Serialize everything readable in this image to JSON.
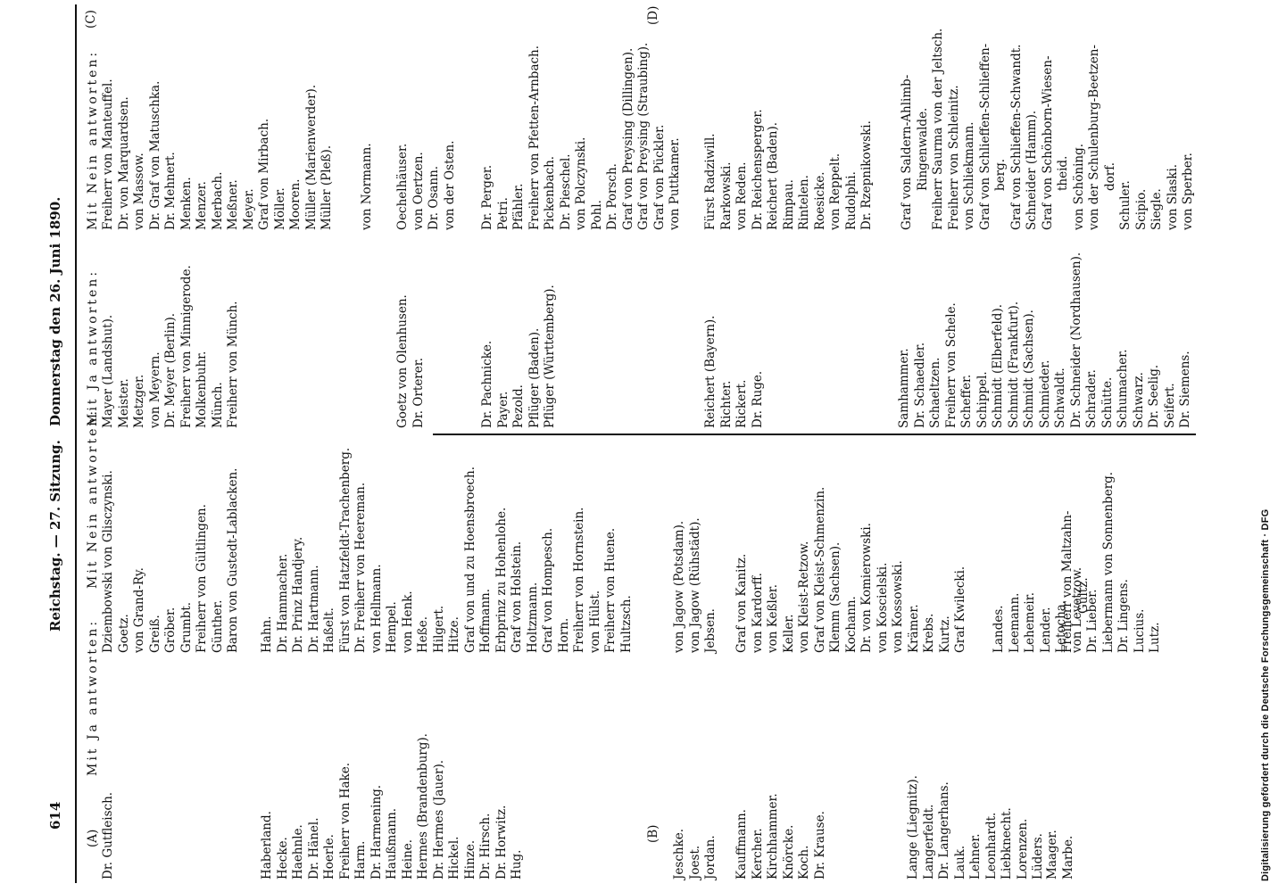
{
  "header": {
    "page_number": "614",
    "session": "Reichstag. — 27. Sitzung.",
    "date": "Donnerstag den 26. Juni 1890."
  },
  "margin_marks": [
    "(A)",
    "(B)",
    "(C)",
    "(D)"
  ],
  "columns": [
    {
      "heading": "Mit Ja antworten:",
      "blocks": [
        [
          "Dr. Gutfleisch."
        ],
        [
          "Haberland.",
          "Hecke.",
          "Haehnle.",
          "Dr. Hänel.",
          "Hoerle.",
          "Freiherr von Hake.",
          "Harm.",
          "Dr. Harmening.",
          "Haußmann.",
          "Heine.",
          "Hermes (Brandenburg).",
          "Dr. Hermes (Jauer).",
          "Hickel.",
          "Hinze.",
          "Dr. Hirsch.",
          "Dr. Horwitz.",
          "Hug."
        ],
        [
          "Jeschke.",
          "Joest.",
          "Jordan."
        ],
        [
          "Kauffmann.",
          "Kercher.",
          "Kirchhammer.",
          "Knörcke.",
          "Koch.",
          "Dr. Krause."
        ],
        [
          "Lange (Liegnitz).",
          "Langerfeldt.",
          "Dr. Langerhans.",
          "Lauk.",
          "Lehner.",
          "Leonhardt.",
          "Liebknecht.",
          "Lorenzen.",
          "Lüders."
        ],
        [
          "Maager.",
          "Marbe."
        ]
      ]
    },
    {
      "heading": "Mit Nein antworten:",
      "blocks": [
        [
          "Dziembowski von Glisczynski.",
          "Goetz.",
          "von Grand-Ry.",
          "Greiß.",
          "Gröber.",
          "Grumbt.",
          "Freiherr von Gültlingen.",
          "Günther.",
          "Baron von Gustedt-Lablacken."
        ],
        [
          "Hahn.",
          "Dr. Hammacher.",
          "Dr. Prinz Handjery.",
          "Dr. Hartmann.",
          "Haßelt.",
          "Fürst von Hatzfeldt-Trachenberg.",
          "Dr. Freiherr von Heereman.",
          "von Hellmann.",
          "Hempel.",
          "von Henk.",
          "Heße.",
          "Hilgert.",
          "Hitze.",
          "Graf von und zu Hoensbroech.",
          "Hoffmann.",
          "Erbprinz zu Hohenlohe.",
          "Graf von Holstein.",
          "Holtzmann.",
          "Graf von Hompesch.",
          "Horn.",
          "Freiherr von Hornstein.",
          "von Hülst.",
          "Freiherr von Huene.",
          "Hultzsch."
        ],
        [
          "von Jagow (Potsdam).",
          "von Jagow (Rühstädt).",
          "Jebsen."
        ],
        [
          "Graf von Kanitz.",
          "von Kardorff.",
          "von Keßler.",
          "Keller.",
          "von Kleist-Retzow.",
          "Graf von Kleist-Schmenzin.",
          "Klemm (Sachsen).",
          "Kochann.",
          "Dr. von Komierowski.",
          "von Koscielski.",
          "von Kossowski.",
          "Krämer.",
          "Krebs.",
          "Kurtz.",
          "Graf Kwilecki."
        ],
        [
          "Landes.",
          "Leemann.",
          "Lehemeir.",
          "Lender.",
          "Letocha.",
          "von Levetzow.",
          "Dr. Lieber.",
          "Liebermann von Sonnenberg.",
          "Dr. Lingens.",
          "Lucius.",
          "Lutz."
        ],
        [
          [
            "Freiherr von Maltzahn-",
            "Gültz."
          ]
        ]
      ]
    },
    {
      "heading": "Mit Ja antworten:",
      "blocks": [
        [
          "Mayer (Landshut).",
          "Meister.",
          "Metzger.",
          "von Meyern.",
          "Dr. Meyer (Berlin).",
          "Freiherr von Minnigerode.",
          "Molkenbuhr.",
          "Münch.",
          "Freiherr von Münch."
        ],
        [
          "Goetz von Olenhusen.",
          "Dr. Orterer."
        ],
        [
          "Dr. Pachnicke.",
          "Payer.",
          "Pezold.",
          "Pflüger (Baden).",
          "Pflüger (Württemberg)."
        ],
        [
          "Reichert (Bayern).",
          "Richter.",
          "Rickert.",
          "Dr. Ruge."
        ],
        [
          "Samhammer.",
          "Dr. Schaedler.",
          "Schaeltzen.",
          "Freiherr von Schele.",
          "Scheffer.",
          "Schippel.",
          "Schmidt (Elberfeld).",
          "Schmidt (Frankfurt).",
          "Schmidt (Sachsen).",
          "Schmieder.",
          "Schwaldt.",
          "Dr. Schneider (Nordhausen).",
          "Schrader.",
          "Schütte.",
          "Schumacher.",
          "Schwarz.",
          "Dr. Seelig.",
          "Seifert.",
          "Dr. Siemens."
        ]
      ]
    },
    {
      "heading": "Mit Nein antworten:",
      "blocks": [
        [
          "Freiherr von Manteuffel.",
          "Dr. von Marquardsen.",
          "von Massow.",
          "Dr. Graf von Matuschka.",
          "Dr. Mehnert.",
          "Menken.",
          "Menzer.",
          "Merbach.",
          "Meßner.",
          "Meyer.",
          "Graf von Mirbach.",
          "Möller.",
          "Mooren.",
          "Müller (Marienwerder).",
          "Müller (Pleß)."
        ],
        [
          "von Normann."
        ],
        [
          "Oechelhäuser.",
          "von Oertzen.",
          "Dr. Osann.",
          "von der Osten."
        ],
        [
          "Dr. Perger.",
          "Petri.",
          "Pfähler.",
          "Freiherr von Pfetten-Arnbach.",
          "Pickenbach.",
          "Dr. Pieschel.",
          "von Polczynski.",
          "Pohl.",
          "Dr. Porsch.",
          "Graf von Preysing (Dillingen).",
          "Graf von Preysing (Straubing).",
          "Graf von Pückler.",
          "von Puttkamer."
        ],
        [
          "Fürst Radziwill.",
          "Rarkowski.",
          "von Reden.",
          "Dr. Reichensperger.",
          "Reichert (Baden).",
          "Rimpau.",
          "Rintelen.",
          "Roesicke.",
          "von Reppelt.",
          "Rudolphi.",
          "Dr. Rzepnikowski."
        ],
        [
          [
            "Graf von Saldern-Ahlimb-",
            "Ringenwalde."
          ],
          "Freiherr Saurma von der Jeltsch.",
          "Freiherr von Schleinitz.",
          "von Schliekmann.",
          [
            "Graf von Schlieffen-Schlieffen-",
            "berg."
          ],
          "Graf von Schlieffen-Schwandt.",
          "Schneider (Hamm).",
          [
            "Graf von Schönborn-Wiesen-",
            "theid."
          ],
          "von Schöning.",
          [
            "von der Schulenburg-Beetzen-",
            "dorf."
          ],
          "Schuler.",
          "Scipio.",
          "Siegle.",
          "von Slaski.",
          "von Sperber."
        ]
      ]
    }
  ],
  "footer": "Digitalisierung gefördert durch die Deutsche Forschungsgemeinschaft · DFG"
}
